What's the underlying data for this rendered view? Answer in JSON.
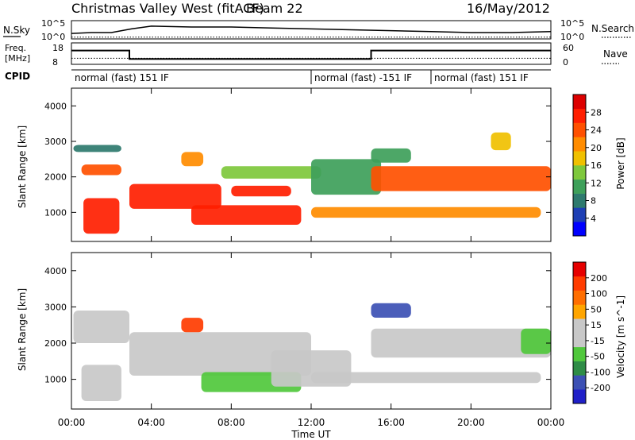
{
  "header": {
    "station": "Christmas Valley West (fitACF)",
    "beam": "Beam 22",
    "date": "16/May/2012"
  },
  "nsky": {
    "label": "N.Sky",
    "ticks": [
      "10^5",
      "10^0"
    ],
    "right_ticks": [
      "10^5",
      "10^0"
    ],
    "right_label": "N.Search"
  },
  "freq": {
    "label_line1": "Freq.",
    "label_line2": "[MHz]",
    "ticks": [
      "18",
      "8"
    ],
    "right_ticks": [
      "60",
      "0"
    ],
    "right_label": "Nave"
  },
  "cpid": {
    "label": "CPID",
    "segments": [
      {
        "text": "normal (fast) 151 IF",
        "start_hour": 0,
        "end_hour": 12
      },
      {
        "text": "normal (fast) -151 IF",
        "start_hour": 12,
        "end_hour": 18
      },
      {
        "text": "normal (fast) 151 IF",
        "start_hour": 18,
        "end_hour": 24
      }
    ]
  },
  "colors": {
    "power_scale": [
      "#0000ff",
      "#1e3fb4",
      "#2e7a6e",
      "#3ea05a",
      "#7ec83c",
      "#f0c000",
      "#ff8c00",
      "#ff5000",
      "#ff1e00",
      "#dc0000"
    ],
    "velocity_scale": [
      "#2020c8",
      "#3c50b4",
      "#2e8c46",
      "#50c83c",
      "#c8c8c8",
      "#c8c8c8",
      "#ffa500",
      "#ff6e00",
      "#ff3c00",
      "#e60000"
    ]
  },
  "chart_data": [
    {
      "type": "line",
      "panel": "N.Sky / N.Search",
      "x_range": [
        0,
        24
      ],
      "note": "approximate trace",
      "series": [
        {
          "name": "N.Sky",
          "x": [
            0,
            1,
            2,
            3,
            4,
            6,
            8,
            10,
            12,
            14,
            16,
            18,
            20,
            22,
            24
          ],
          "y": [
            0.3,
            0.35,
            0.35,
            0.55,
            0.7,
            0.65,
            0.65,
            0.6,
            0.55,
            0.5,
            0.45,
            0.4,
            0.35,
            0.35,
            0.4
          ]
        },
        {
          "name": "N.Search",
          "x": [
            0,
            24
          ],
          "y": [
            0.1,
            0.1
          ]
        }
      ]
    },
    {
      "type": "line",
      "panel": "Freq. / Nave",
      "x_range": [
        0,
        24
      ],
      "series": [
        {
          "name": "Freq",
          "x": [
            0,
            2.9,
            2.9,
            15,
            15,
            24
          ],
          "y": [
            15,
            15,
            9.5,
            9.5,
            15,
            15
          ]
        },
        {
          "name": "Nave",
          "x": [
            0,
            24
          ],
          "y": [
            17,
            17
          ]
        }
      ]
    },
    {
      "type": "heatmap",
      "panel": "Power",
      "x_range": [
        0,
        24
      ],
      "x_ticks": [
        "00:00",
        "04:00",
        "08:00",
        "12:00",
        "16:00",
        "20:00",
        "00:00"
      ],
      "xlabel": "Time UT",
      "ylabel": "Slant Range [km]",
      "ylim": [
        180,
        4500
      ],
      "y_ticks": [
        1000,
        2000,
        3000,
        4000
      ],
      "colorbar": {
        "label": "Power [dB]",
        "ticks": [
          28,
          24,
          20,
          16,
          12,
          8,
          4
        ],
        "range": [
          0,
          30
        ]
      },
      "features": [
        {
          "x": [
            0.1,
            2.5
          ],
          "y": [
            2700,
            2900
          ],
          "value": 8
        },
        {
          "x": [
            0.5,
            2.5
          ],
          "y": [
            2050,
            2350
          ],
          "value": 22
        },
        {
          "x": [
            0.6,
            2.4
          ],
          "y": [
            400,
            1400
          ],
          "value": 26
        },
        {
          "x": [
            2.9,
            7.5
          ],
          "y": [
            1100,
            1800
          ],
          "value": 25
        },
        {
          "x": [
            5.5,
            6.6
          ],
          "y": [
            2300,
            2700
          ],
          "value": 18
        },
        {
          "x": [
            6.0,
            11.5
          ],
          "y": [
            650,
            1200
          ],
          "value": 26
        },
        {
          "x": [
            8.0,
            11.0
          ],
          "y": [
            1450,
            1750
          ],
          "value": 24
        },
        {
          "x": [
            7.5,
            12.5
          ],
          "y": [
            1950,
            2300
          ],
          "value": 12
        },
        {
          "x": [
            12.0,
            15.5
          ],
          "y": [
            1500,
            2500
          ],
          "value": 10
        },
        {
          "x": [
            12.0,
            23.5
          ],
          "y": [
            850,
            1150
          ],
          "value": 20
        },
        {
          "x": [
            15.0,
            24.0
          ],
          "y": [
            1600,
            2300
          ],
          "value": 21
        },
        {
          "x": [
            15.0,
            17.0
          ],
          "y": [
            2400,
            2800
          ],
          "value": 9
        },
        {
          "x": [
            21.0,
            22.0
          ],
          "y": [
            2750,
            3250
          ],
          "value": 16
        }
      ]
    },
    {
      "type": "heatmap",
      "panel": "Velocity",
      "x_range": [
        0,
        24
      ],
      "x_ticks": [
        "00:00",
        "04:00",
        "08:00",
        "12:00",
        "16:00",
        "20:00",
        "00:00"
      ],
      "xlabel": "Time UT",
      "ylabel": "Slant Range [km]",
      "ylim": [
        180,
        4500
      ],
      "y_ticks": [
        1000,
        2000,
        3000,
        4000
      ],
      "colorbar": {
        "label": "Velocity [m s^-1]",
        "ticks": [
          200,
          100,
          50,
          15,
          -15,
          -50,
          -100,
          -200
        ],
        "range": [
          -250,
          250
        ]
      },
      "features": [
        {
          "x": [
            0.1,
            2.9
          ],
          "y": [
            2000,
            2900
          ],
          "value": 0
        },
        {
          "x": [
            0.5,
            2.5
          ],
          "y": [
            400,
            1400
          ],
          "value": 0
        },
        {
          "x": [
            2.9,
            12.0
          ],
          "y": [
            1100,
            2300
          ],
          "value": 0
        },
        {
          "x": [
            5.5,
            6.6
          ],
          "y": [
            2300,
            2700
          ],
          "value": 180
        },
        {
          "x": [
            6.5,
            11.5
          ],
          "y": [
            650,
            1200
          ],
          "value": -60
        },
        {
          "x": [
            10.0,
            14.0
          ],
          "y": [
            800,
            1800
          ],
          "value": 40
        },
        {
          "x": [
            12.0,
            23.5
          ],
          "y": [
            900,
            1200
          ],
          "value": 0
        },
        {
          "x": [
            15.0,
            24.0
          ],
          "y": [
            1600,
            2400
          ],
          "value": 0
        },
        {
          "x": [
            15.0,
            17.0
          ],
          "y": [
            2700,
            3100
          ],
          "value": -200
        },
        {
          "x": [
            22.5,
            24.0
          ],
          "y": [
            1700,
            2400
          ],
          "value": -60
        }
      ]
    }
  ]
}
